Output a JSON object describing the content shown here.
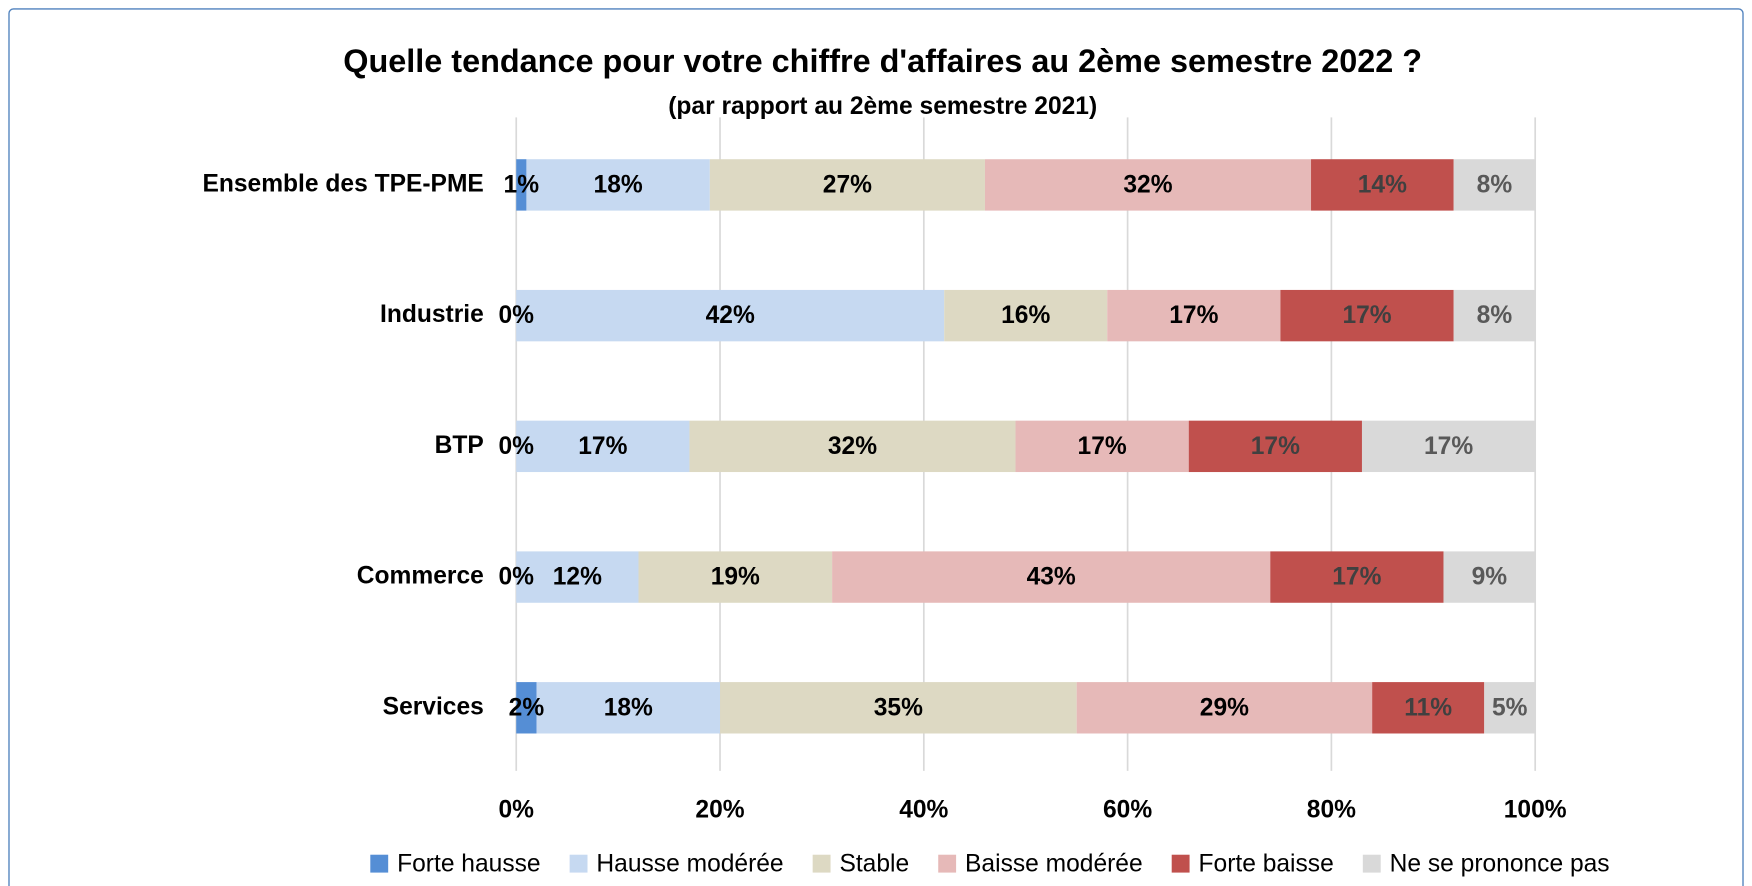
{
  "chart_data": {
    "type": "stacked_barh",
    "title": "Quelle tendance pour votre chiffre d'affaires au 2ème semestre 2022 ?",
    "subtitle": "(par rapport au 2ème semestre 2021)",
    "categories": [
      "Ensemble des TPE-PME",
      "Industrie",
      "BTP",
      "Commerce",
      "Services"
    ],
    "series": [
      {
        "name": "Forte hausse",
        "color": "#558ed5",
        "label_color": "#000000",
        "values": [
          1,
          0,
          0,
          0,
          2
        ],
        "value_labels": [
          "1%",
          "0%",
          "0%",
          "0%",
          "2%"
        ]
      },
      {
        "name": "Hausse modérée",
        "color": "#c6d9f1",
        "label_color": "#000000",
        "values": [
          18,
          42,
          17,
          12,
          18
        ],
        "value_labels": [
          "18%",
          "42%",
          "17%",
          "12%",
          "18%"
        ]
      },
      {
        "name": "Stable",
        "color": "#ddd9c3",
        "label_color": "#000000",
        "values": [
          27,
          16,
          32,
          19,
          35
        ],
        "value_labels": [
          "27%",
          "16%",
          "32%",
          "19%",
          "35%"
        ]
      },
      {
        "name": "Baisse modérée",
        "color": "#e6b9b8",
        "label_color": "#000000",
        "values": [
          32,
          17,
          17,
          43,
          29
        ],
        "value_labels": [
          "32%",
          "17%",
          "17%",
          "43%",
          "29%"
        ]
      },
      {
        "name": "Forte baisse",
        "color": "#c0504d",
        "label_color": "#404040",
        "values": [
          14,
          17,
          17,
          17,
          11
        ],
        "value_labels": [
          "14%",
          "17%",
          "17%",
          "17%",
          "11%"
        ]
      },
      {
        "name": "Ne se prononce pas",
        "color": "#d9d9d9",
        "label_color": "#595959",
        "values": [
          8,
          8,
          17,
          9,
          5
        ],
        "value_labels": [
          "8%",
          "8%",
          "17%",
          "9%",
          "5%"
        ]
      }
    ],
    "xlim": [
      0,
      100
    ],
    "xticks": [
      {
        "value": 0,
        "label": "0%"
      },
      {
        "value": 20,
        "label": "20%"
      },
      {
        "value": 40,
        "label": "40%"
      },
      {
        "value": 60,
        "label": "60%"
      },
      {
        "value": 80,
        "label": "80%"
      },
      {
        "value": 100,
        "label": "100%"
      }
    ],
    "grid": true,
    "legend_position": "bottom"
  }
}
